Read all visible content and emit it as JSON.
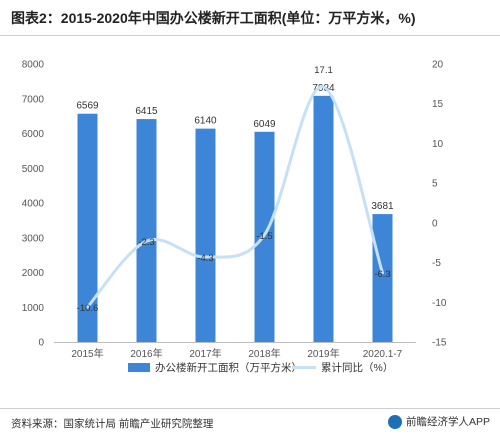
{
  "title": "图表2：2015-2020年中国办公楼新开工面积(单位：万平方米，%)",
  "source": "资料来源：国家统计局 前瞻产业研究院整理",
  "brand": "前瞻经济学人APP",
  "colors": {
    "bar": "#3d85d6",
    "line": "#c6e0f5",
    "axis_text": "#555555"
  },
  "chart_data": {
    "type": "bar",
    "categories": [
      "2015年",
      "2016年",
      "2017年",
      "2018年",
      "2019年",
      "2020.1-7"
    ],
    "series": [
      {
        "name": "办公楼新开工面积（万平方米）",
        "type": "bar",
        "axis": "left",
        "values": [
          6569,
          6415,
          6140,
          6049,
          7084,
          3681
        ]
      },
      {
        "name": "累计同比（%）",
        "type": "line",
        "axis": "right",
        "values": [
          -10.6,
          -2.3,
          -4.3,
          -1.5,
          17.1,
          -6.3
        ]
      }
    ],
    "y_left": {
      "min": 0,
      "max": 8000,
      "ticks": [
        0,
        1000,
        2000,
        3000,
        4000,
        5000,
        6000,
        7000,
        8000
      ]
    },
    "y_right": {
      "min": -15,
      "max": 20,
      "ticks": [
        -15,
        -10,
        -5,
        0,
        5,
        10,
        15,
        20
      ]
    },
    "legend_position": "bottom-center",
    "grid": false
  }
}
